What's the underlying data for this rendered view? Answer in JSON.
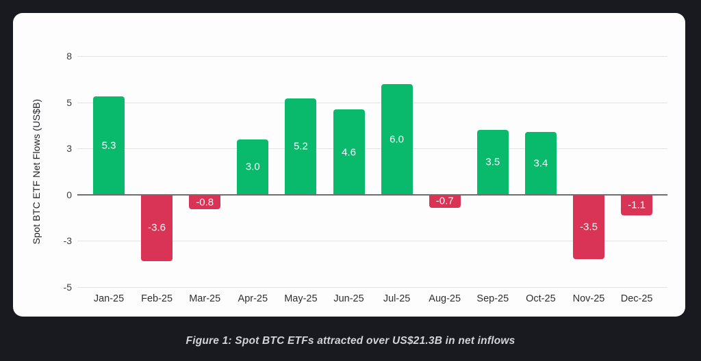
{
  "page": {
    "background_color": "#181a1f",
    "card_color": "#fdfdfd"
  },
  "caption": "Figure 1: Spot BTC ETFs attracted over US$21.3B in net inflows",
  "chart_data": {
    "type": "bar",
    "title": "",
    "xlabel": "",
    "ylabel": "Spot BTC ETF Net Flows (US$B)",
    "categories": [
      "Jan-25",
      "Feb-25",
      "Mar-25",
      "Apr-25",
      "May-25",
      "Jun-25",
      "Jul-25",
      "Aug-25",
      "Sep-25",
      "Oct-25",
      "Nov-25",
      "Dec-25"
    ],
    "values": [
      5.3,
      -3.6,
      -0.8,
      3.0,
      5.2,
      4.6,
      6.0,
      -0.7,
      3.5,
      3.4,
      -3.5,
      -1.1
    ],
    "bar_labels": [
      "5.3",
      "-3.6",
      "-0.8",
      "3.0",
      "5.2",
      "4.6",
      "6.0",
      "-0.7",
      "3.5",
      "3.4",
      "-3.5",
      "-1.1"
    ],
    "yticks": [
      8,
      5,
      3,
      0,
      -3,
      -5
    ],
    "ylim": [
      -5,
      8
    ],
    "grid": true,
    "legend": false,
    "positive_color": "#09b96c",
    "negative_color": "#d93355",
    "gridline_color": "#e3e3e3",
    "zero_line_color": "#6e6e6e",
    "bar_label_color": "#ffffff",
    "axis_text_color": "#3c3c3c"
  }
}
